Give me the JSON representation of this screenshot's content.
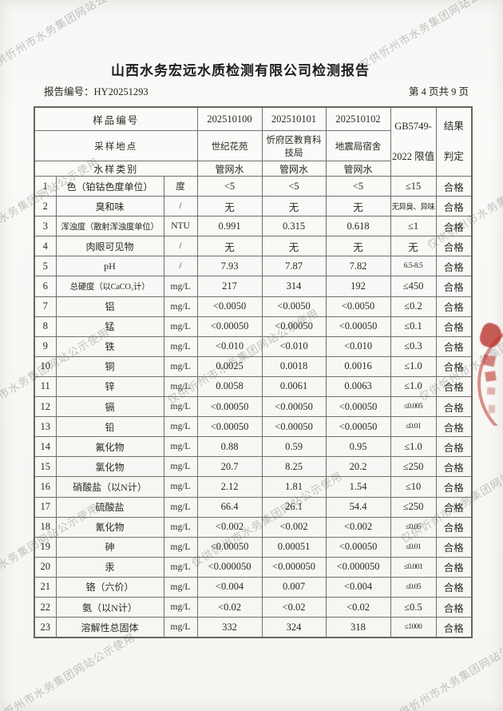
{
  "watermark": {
    "text": "仅供忻州市水务集团网站公示使用"
  },
  "header": {
    "title": "山西水务宏远水质检测有限公司检测报告",
    "report_number_label": "报告编号：",
    "report_number": "HY20251293",
    "page_indicator": "第 4 页共 9 页"
  },
  "table": {
    "header": {
      "sample_id_label": "样品编号",
      "sample_ids": [
        "202510100",
        "202510101",
        "202510102"
      ],
      "sampling_point_label": "采样地点",
      "sampling_points": [
        "世纪花苑",
        "忻府区教育科技局",
        "地震局宿舍"
      ],
      "water_type_label": "水样类别",
      "water_types": [
        "管网水",
        "管网水",
        "管网水"
      ],
      "limit_label_line1": "GB5749-",
      "limit_label_line2": "2022 限值",
      "result_label_line1": "结果",
      "result_label_line2": "判定"
    },
    "rows": [
      {
        "no": "1",
        "name": "色（铂钴色度单位）",
        "unit": "度",
        "v1": "<5",
        "v2": "<5",
        "v3": "<5",
        "limit": "≤15",
        "result": "合格"
      },
      {
        "no": "2",
        "name": "臭和味",
        "unit": "/",
        "v1": "无",
        "v2": "无",
        "v3": "无",
        "limit": "无异臭、异味",
        "result": "合格"
      },
      {
        "no": "3",
        "name": "浑浊度（散射浑浊度单位）",
        "unit": "NTU",
        "v1": "0.991",
        "v2": "0.315",
        "v3": "0.618",
        "limit": "≤1",
        "result": "合格"
      },
      {
        "no": "4",
        "name": "肉眼可见物",
        "unit": "/",
        "v1": "无",
        "v2": "无",
        "v3": "无",
        "limit": "无",
        "result": "合格"
      },
      {
        "no": "5",
        "name": "pH",
        "unit": "/",
        "v1": "7.93",
        "v2": "7.87",
        "v3": "7.82",
        "limit": "6.5-8.5",
        "result": "合格"
      },
      {
        "no": "6",
        "name": "总硬度（以CaCO₃计）",
        "unit": "mg/L",
        "v1": "217",
        "v2": "314",
        "v3": "192",
        "limit": "≤450",
        "result": "合格"
      },
      {
        "no": "7",
        "name": "铝",
        "unit": "mg/L",
        "v1": "<0.0050",
        "v2": "<0.0050",
        "v3": "<0.0050",
        "limit": "≤0.2",
        "result": "合格"
      },
      {
        "no": "8",
        "name": "锰",
        "unit": "mg/L",
        "v1": "<0.00050",
        "v2": "<0.00050",
        "v3": "<0.00050",
        "limit": "≤0.1",
        "result": "合格"
      },
      {
        "no": "9",
        "name": "铁",
        "unit": "mg/L",
        "v1": "<0.010",
        "v2": "<0.010",
        "v3": "<0.010",
        "limit": "≤0.3",
        "result": "合格"
      },
      {
        "no": "10",
        "name": "铜",
        "unit": "mg/L",
        "v1": "0.0025",
        "v2": "0.0018",
        "v3": "0.0016",
        "limit": "≤1.0",
        "result": "合格"
      },
      {
        "no": "11",
        "name": "锌",
        "unit": "mg/L",
        "v1": "0.0058",
        "v2": "0.0061",
        "v3": "0.0063",
        "limit": "≤1.0",
        "result": "合格"
      },
      {
        "no": "12",
        "name": "镉",
        "unit": "mg/L",
        "v1": "<0.00050",
        "v2": "<0.00050",
        "v3": "<0.00050",
        "limit": "≤0.005",
        "result": "合格"
      },
      {
        "no": "13",
        "name": "铅",
        "unit": "mg/L",
        "v1": "<0.00050",
        "v2": "<0.00050",
        "v3": "<0.00050",
        "limit": "≤0.01",
        "result": "合格"
      },
      {
        "no": "14",
        "name": "氟化物",
        "unit": "mg/L",
        "v1": "0.88",
        "v2": "0.59",
        "v3": "0.95",
        "limit": "≤1.0",
        "result": "合格"
      },
      {
        "no": "15",
        "name": "氯化物",
        "unit": "mg/L",
        "v1": "20.7",
        "v2": "8.25",
        "v3": "20.2",
        "limit": "≤250",
        "result": "合格"
      },
      {
        "no": "16",
        "name": "硝酸盐（以N计）",
        "unit": "mg/L",
        "v1": "2.12",
        "v2": "1.81",
        "v3": "1.54",
        "limit": "≤10",
        "result": "合格"
      },
      {
        "no": "17",
        "name": "硫酸盐",
        "unit": "mg/L",
        "v1": "66.4",
        "v2": "26.1",
        "v3": "54.4",
        "limit": "≤250",
        "result": "合格"
      },
      {
        "no": "18",
        "name": "氰化物",
        "unit": "mg/L",
        "v1": "<0.002",
        "v2": "<0.002",
        "v3": "<0.002",
        "limit": "≤0.05",
        "result": "合格"
      },
      {
        "no": "19",
        "name": "砷",
        "unit": "mg/L",
        "v1": "<0.00050",
        "v2": "0.00051",
        "v3": "<0.00050",
        "limit": "≤0.01",
        "result": "合格"
      },
      {
        "no": "20",
        "name": "汞",
        "unit": "mg/L",
        "v1": "<0.000050",
        "v2": "<0.000050",
        "v3": "<0.000050",
        "limit": "≤0.001",
        "result": "合格"
      },
      {
        "no": "21",
        "name": "铬（六价）",
        "unit": "mg/L",
        "v1": "<0.004",
        "v2": "0.007",
        "v3": "<0.004",
        "limit": "≤0.05",
        "result": "合格"
      },
      {
        "no": "22",
        "name": "氨（以N计）",
        "unit": "mg/L",
        "v1": "<0.02",
        "v2": "<0.02",
        "v3": "<0.02",
        "limit": "≤0.5",
        "result": "合格"
      },
      {
        "no": "23",
        "name": "溶解性总固体",
        "unit": "mg/L",
        "v1": "332",
        "v2": "324",
        "v3": "318",
        "limit": "≤1000",
        "result": "合格"
      }
    ]
  },
  "stamp": {
    "color": "#b83a30"
  }
}
